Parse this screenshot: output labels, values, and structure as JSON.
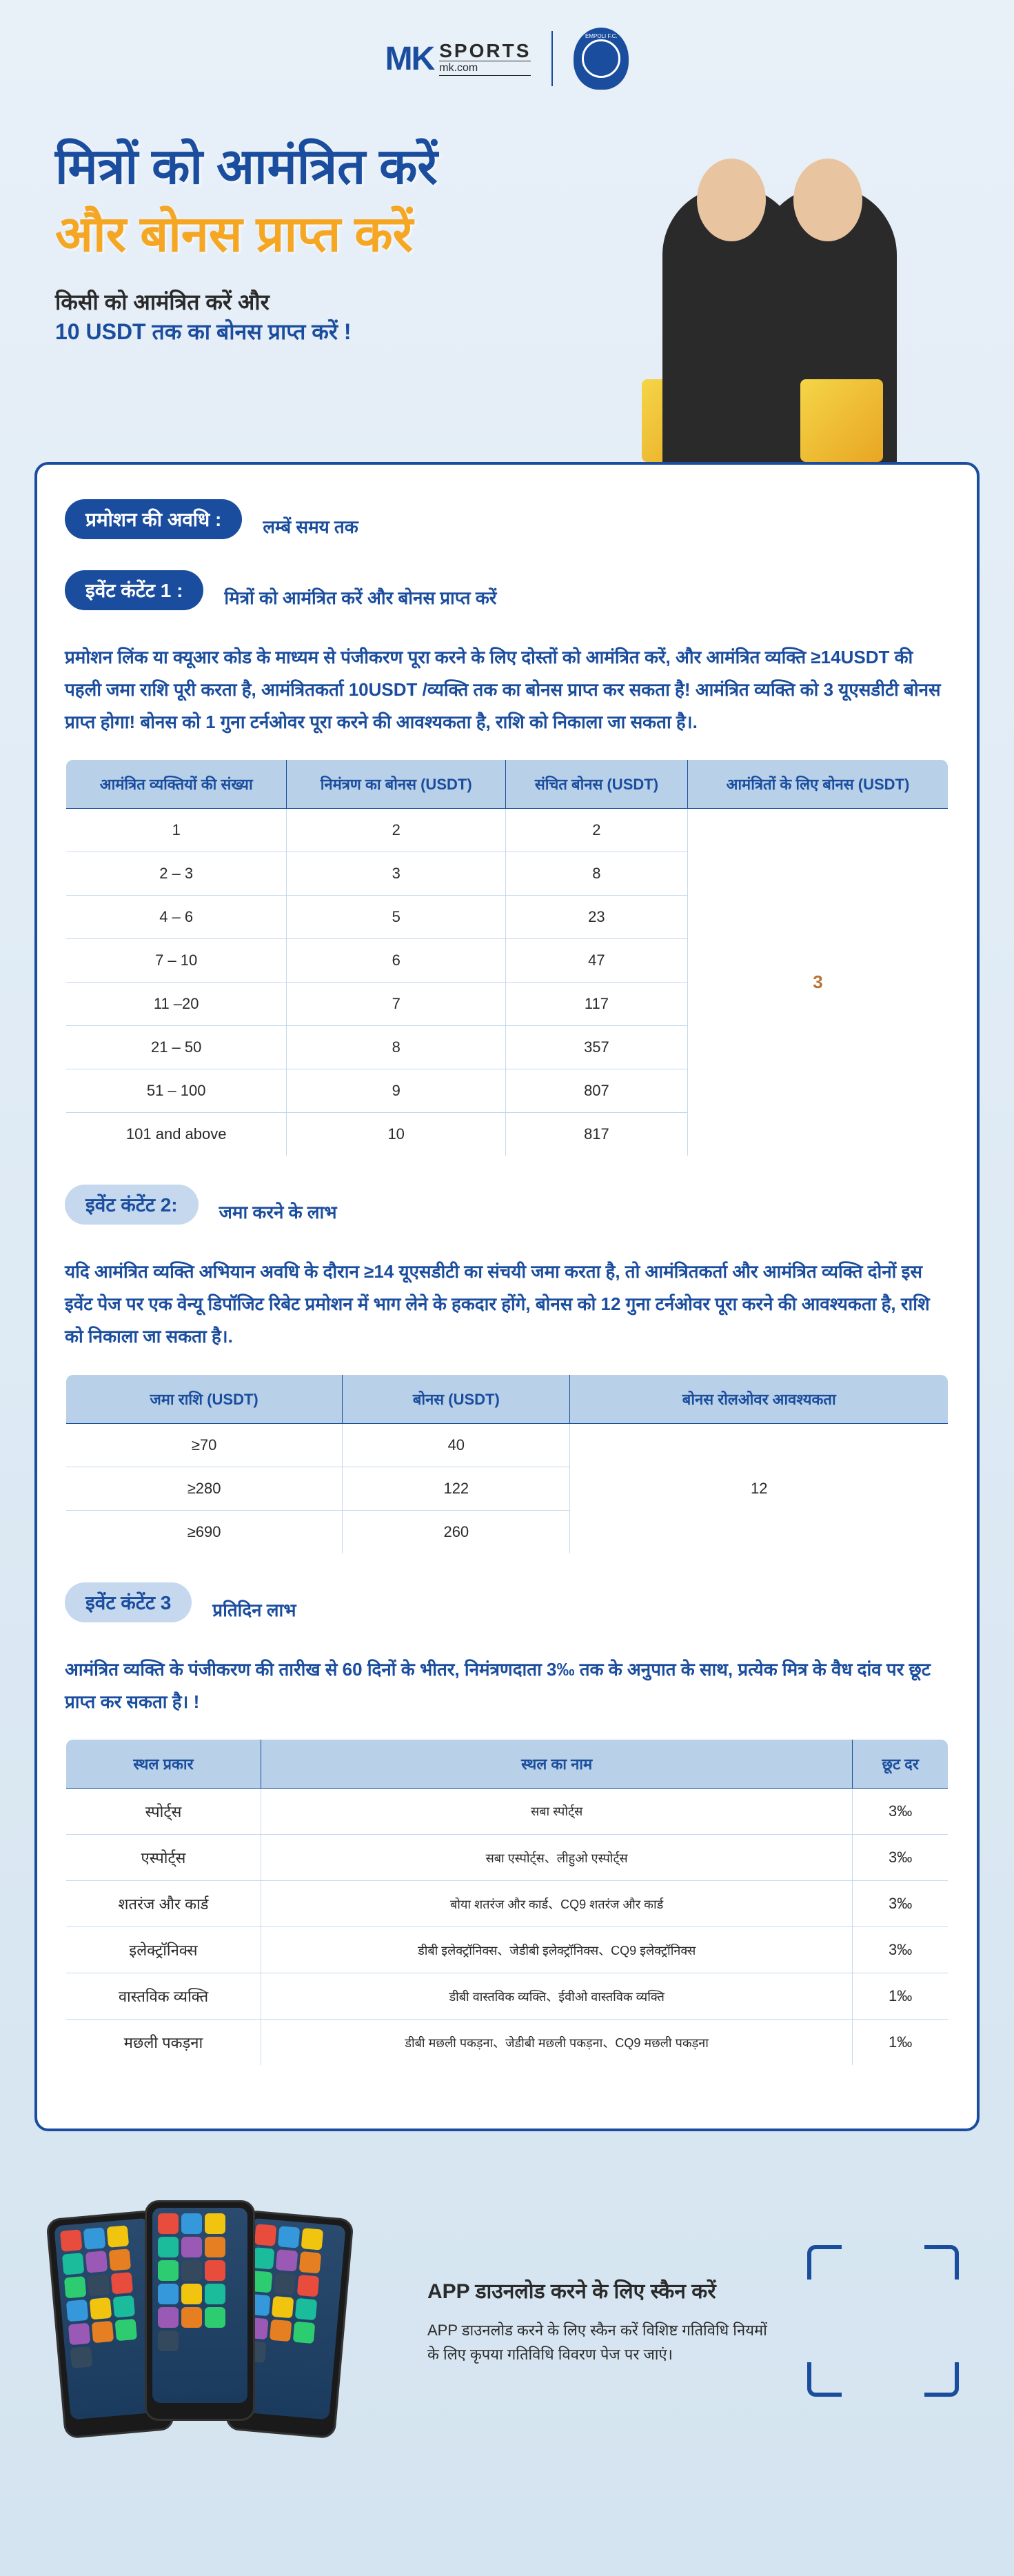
{
  "logo": {
    "mk": "MK",
    "sports": "SPORTS",
    "domain": "mk.com",
    "badge_text": "EMPOLI F.C."
  },
  "hero": {
    "title1": "मित्रों को आमंत्रित करें",
    "title2": "और बोनस प्राप्त करें",
    "sub1": "किसी को आमंत्रित करें और",
    "sub2": "10 USDT तक का बोनस प्राप्त करें !"
  },
  "section_period": {
    "label": "प्रमोशन की अवधि :",
    "value": "लम्बें समय तक"
  },
  "event1": {
    "label": "इवेंट कंटेंट 1 :",
    "title": "मित्रों को आमंत्रित करें और बोनस प्राप्त करें",
    "desc": "प्रमोशन लिंक या क्यूआर कोड के माध्यम से पंजीकरण पूरा करने के लिए दोस्तों को आमंत्रित करें, और आमंत्रित व्यक्ति ≥14USDT की पहली जमा राशि पूरी करता है, आमंत्रितकर्ता 10USDT /व्यक्ति तक का बोनस प्राप्त कर सकता है! आमंत्रित व्यक्ति को 3 यूएसडीटी बोनस प्राप्त होगा! बोनस को 1 गुना टर्नओवर पूरा करने की आवश्यकता है, राशि को निकाला जा सकता है।.",
    "headers": [
      "आमंत्रित व्यक्तियों की संख्या",
      "निमंत्रण का बोनस (USDT)",
      "संचित बोनस (USDT)",
      "आमंत्रितों के लिए बोनस (USDT)"
    ],
    "rows": [
      [
        "1",
        "2",
        "2"
      ],
      [
        "2 – 3",
        "3",
        "8"
      ],
      [
        "4 – 6",
        "5",
        "23"
      ],
      [
        "7 – 10",
        "6",
        "47"
      ],
      [
        "11 –20",
        "7",
        "117"
      ],
      [
        "21 – 50",
        "8",
        "357"
      ],
      [
        "51 – 100",
        "9",
        "807"
      ],
      [
        "101 and above",
        "10",
        "817"
      ]
    ],
    "merged_value": "3"
  },
  "event2": {
    "label": "इवेंट कंटेंट 2:",
    "title": "जमा करने के लाभ",
    "desc": "यदि आमंत्रित व्यक्ति अभियान अवधि के दौरान ≥14 यूएसडीटी का संचयी जमा करता है, तो आमंत्रितकर्ता और आमंत्रित व्यक्ति दोनों इस इवेंट पेज पर एक वेन्यू डिपॉजिट रिबेट प्रमोशन में भाग लेने के हकदार होंगे, बोनस को 12 गुना टर्नओवर पूरा करने की आवश्यकता है, राशि को निकाला जा सकता है।.",
    "headers": [
      "जमा राशि (USDT)",
      "बोनस (USDT)",
      "बोनस रोलओवर आवश्यकता"
    ],
    "rows": [
      [
        "≥70",
        "40"
      ],
      [
        "≥280",
        "122"
      ],
      [
        "≥690",
        "260"
      ]
    ],
    "merged_value": "12"
  },
  "event3": {
    "label": "इवेंट कंटेंट 3",
    "title": "प्रतिदिन लाभ",
    "desc": "आमंत्रित व्यक्ति के पंजीकरण की तारीख से 60 दिनों के भीतर, निमंत्रणदाता 3‰ तक के अनुपात के साथ, प्रत्येक मित्र के वैध दांव पर छूट प्राप्त कर सकता है। !",
    "headers": [
      "स्थल प्रकार",
      "स्थल का नाम",
      "छूट दर"
    ],
    "rows": [
      [
        "स्पोर्ट्स",
        "सबा स्पोर्ट्स",
        "3‰"
      ],
      [
        "एस्पोर्ट्स",
        "सबा एस्पोर्ट्स、लीहुओ एस्पोर्ट्स",
        "3‰"
      ],
      [
        "शतरंज और कार्ड",
        "बोया शतरंज और कार्ड、CQ9 शतरंज और कार्ड",
        "3‰"
      ],
      [
        "इलेक्ट्रॉनिक्स",
        "डीबी इलेक्ट्रॉनिक्स、जेडीबी इलेक्ट्रॉनिक्स、CQ9 इलेक्ट्रॉनिक्स",
        "3‰"
      ],
      [
        "वास्तविक व्यक्ति",
        "डीबी वास्तविक व्यक्ति、ईवीओ वास्तविक व्यक्ति",
        "1‰"
      ],
      [
        "मछली पकड़ना",
        "डीबी मछली पकड़ना、जेडीबी मछली पकड़ना、CQ9 मछली पकड़ना",
        "1‰"
      ]
    ]
  },
  "footer": {
    "title": "APP डाउनलोड करने के लिए स्कैन करें",
    "desc": "APP डाउनलोड करने के लिए स्कैन करें विशिष्ट गतिविधि नियमों के लिए कृपया गतिविधि विवरण पेज पर जाएं।"
  },
  "colors": {
    "primary": "#1a4d9e",
    "accent": "#f5a623",
    "table_header_bg": "#b8d0e8",
    "highlight": "#b87333",
    "phone_tiles": [
      "#e74c3c",
      "#3498db",
      "#f1c40f",
      "#1abc9c",
      "#9b59b6",
      "#e67e22",
      "#2ecc71",
      "#34495e"
    ]
  }
}
